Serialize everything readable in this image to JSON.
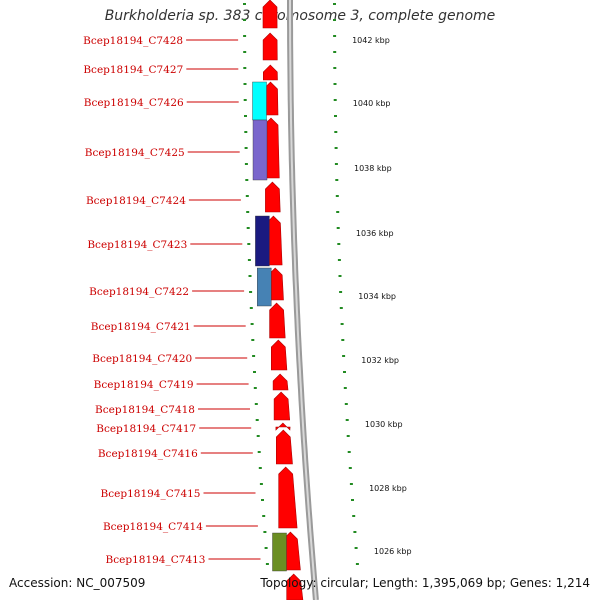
{
  "title": "Burkholderia sp. 383 chromosome 3, complete genome",
  "footer": {
    "accession": "Accession: NC_007509",
    "summary": "Topology: circular; Length: 1,395,069 bp; Genes: 1,214"
  },
  "colors": {
    "gene_label": "#cc0000",
    "cds_forward": "#ff0000",
    "backbone": "#888888",
    "tick": "#228b22"
  },
  "genes": [
    {
      "label": "Bcep18194_C7428"
    },
    {
      "label": "Bcep18194_C7427"
    },
    {
      "label": "Bcep18194_C7426",
      "feature_color": "#00ffff"
    },
    {
      "label": "Bcep18194_C7425",
      "feature_color": "#7a66cc"
    },
    {
      "label": "Bcep18194_C7424"
    },
    {
      "label": "Bcep18194_C7423",
      "feature_color": "#1a1a80"
    },
    {
      "label": "Bcep18194_C7422",
      "feature_color": "#4682b4"
    },
    {
      "label": "Bcep18194_C7421"
    },
    {
      "label": "Bcep18194_C7420"
    },
    {
      "label": "Bcep18194_C7419"
    },
    {
      "label": "Bcep18194_C7418"
    },
    {
      "label": "Bcep18194_C7417"
    },
    {
      "label": "Bcep18194_C7416"
    },
    {
      "label": "Bcep18194_C7415"
    },
    {
      "label": "Bcep18194_C7414"
    },
    {
      "label": "Bcep18194_C7413",
      "feature_color": "#6b8e23"
    }
  ],
  "scale_labels": [
    "1042 kbp",
    "1040 kbp",
    "1038 kbp",
    "1036 kbp",
    "1034 kbp",
    "1032 kbp",
    "1030 kbp",
    "1028 kbp",
    "1026 kbp"
  ]
}
